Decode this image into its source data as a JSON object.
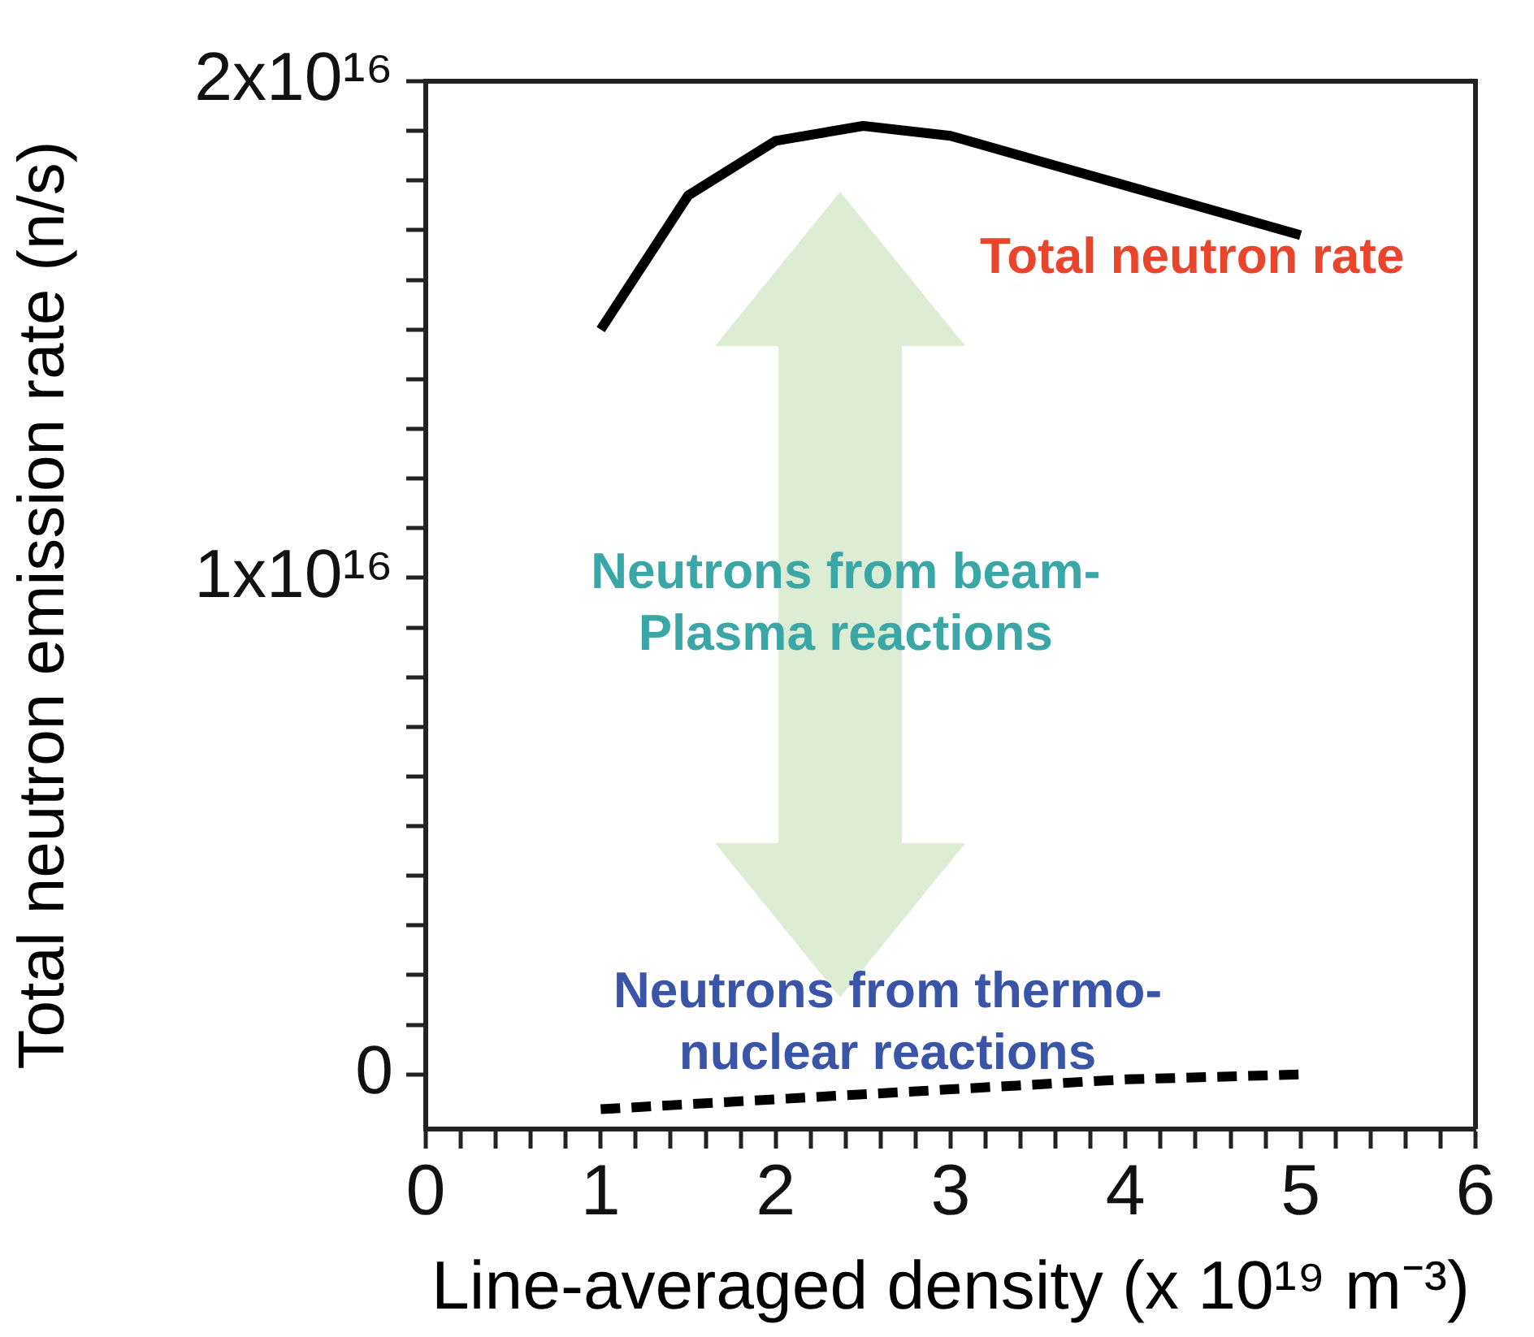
{
  "chart_data": {
    "type": "line",
    "xlabel": "Line-averaged density (x 10¹⁹ m⁻³)",
    "ylabel": "Total neutron emission rate (n/s)",
    "x": [
      1,
      1.5,
      2,
      2.5,
      3,
      4,
      5
    ],
    "series": [
      {
        "color": "#000000",
        "line_style": "solid",
        "values": [
          1.5e+16,
          1.77e+16,
          1.88e+16,
          1.91e+16,
          1.89e+16,
          1.79e+16,
          1.69e+16
        ]
      },
      {
        "color": "#000000",
        "line_style": "dashed",
        "x": [
          1,
          2,
          3,
          4,
          5
        ],
        "values": [
          -700000000000000.0,
          -500000000000000.0,
          -300000000000000.0,
          -100000000000000.0,
          0
        ]
      }
    ],
    "xlim": [
      0,
      6
    ],
    "xticks": [
      0,
      {
        "value": 0.2,
        "label": null
      },
      {
        "value": 0.4,
        "label": null
      },
      {
        "value": 0.6,
        "label": null
      },
      {
        "value": 0.8,
        "label": null
      },
      1,
      {
        "value": 1.2,
        "label": null
      },
      {
        "value": 1.4,
        "label": null
      },
      {
        "value": 1.6,
        "label": null
      },
      {
        "value": 1.8,
        "label": null
      },
      2,
      {
        "value": 2.2,
        "label": null
      },
      {
        "value": 2.4,
        "label": null
      },
      {
        "value": 2.6,
        "label": null
      },
      {
        "value": 2.8,
        "label": null
      },
      3,
      {
        "value": 3.2,
        "label": null
      },
      {
        "value": 3.4,
        "label": null
      },
      {
        "value": 3.6,
        "label": null
      },
      {
        "value": 3.8,
        "label": null
      },
      4,
      {
        "value": 4.2,
        "label": null
      },
      {
        "value": 4.4,
        "label": null
      },
      {
        "value": 4.6,
        "label": null
      },
      {
        "value": 4.8,
        "label": null
      },
      5,
      {
        "value": 5.2,
        "label": null
      },
      {
        "value": 5.4,
        "label": null
      },
      {
        "value": 5.6,
        "label": null
      },
      {
        "value": 5.8,
        "label": null
      },
      6
    ],
    "ylim": [
      -1100000000000000.0,
      2e+16
    ],
    "yticks": [
      {
        "value": 0,
        "label": "0"
      },
      {
        "value": 1000000000000000.0,
        "label": null
      },
      {
        "value": 2000000000000000.0,
        "label": null
      },
      {
        "value": 3000000000000000.0,
        "label": null
      },
      {
        "value": 4000000000000000.0,
        "label": null
      },
      {
        "value": 5000000000000000.0,
        "label": null
      },
      {
        "value": 6000000000000000.0,
        "label": null
      },
      {
        "value": 7000000000000000.0,
        "label": null
      },
      {
        "value": 8000000000000000.0,
        "label": null
      },
      {
        "value": 9000000000000000.0,
        "label": null
      },
      {
        "value": 1e+16,
        "label": "1x10¹⁶"
      },
      {
        "value": 1.1e+16,
        "label": null
      },
      {
        "value": 1.2e+16,
        "label": null
      },
      {
        "value": 1.3e+16,
        "label": null
      },
      {
        "value": 1.4e+16,
        "label": null
      },
      {
        "value": 1.5e+16,
        "label": null
      },
      {
        "value": 1.6e+16,
        "label": null
      },
      {
        "value": 1.7e+16,
        "label": null
      },
      {
        "value": 1.8e+16,
        "label": null
      },
      {
        "value": 1.9e+16,
        "label": null
      },
      {
        "value": 2e+16,
        "label": "2x10¹⁶"
      }
    ],
    "grid": false,
    "legend": false,
    "marker": "none",
    "annotations": [
      "Total neutron rate",
      "Neutrons from beam-\nPlasma reactions",
      "Neutrons from thermo-\nnuclear reactions"
    ]
  }
}
